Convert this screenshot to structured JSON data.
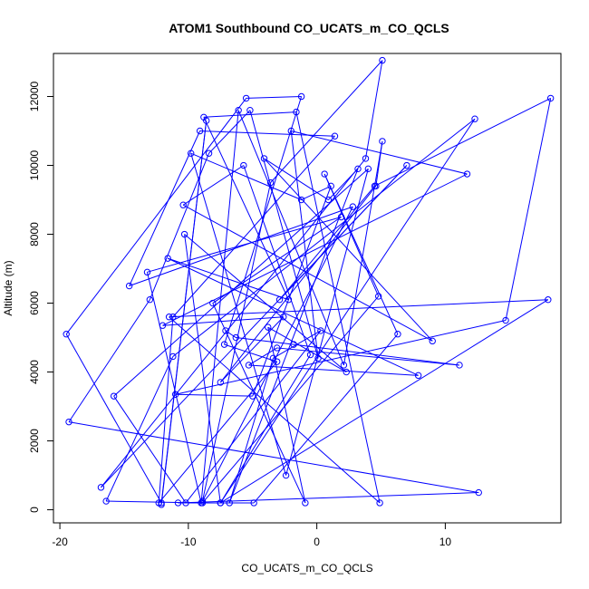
{
  "chart_data": {
    "type": "line",
    "title": "ATOM1 Southbound CO_UCATS_m_CO_QCLS",
    "xlabel": "CO_UCATS_m_CO_QCLS",
    "ylabel": "Altitude (m)",
    "xlim": [
      -20.5,
      19.0
    ],
    "ylim": [
      -380,
      13250
    ],
    "xticks": [
      -20,
      -10,
      0,
      10
    ],
    "yticks": [
      0,
      2000,
      4000,
      6000,
      8000,
      10000,
      12000
    ],
    "markers": "open-circle",
    "color": "#0000ff",
    "x": [
      -12.1,
      -8.6,
      -12.1,
      -19.5,
      -5.5,
      -1.2,
      -7.2,
      -3.1,
      -12.3,
      -11.2,
      1.4,
      -9.1,
      -14.6,
      2.8,
      -8.9,
      -3.6,
      5.1,
      3.8,
      -16.8,
      7.0,
      -2.9,
      4.5,
      18.2,
      14.7,
      -11.0,
      -5.0,
      1.1,
      -1.2,
      -9.8,
      -2.4,
      4.0,
      -15.8,
      -10.2,
      0.3,
      -3.4,
      -6.8,
      3.2,
      0.9,
      -4.1,
      9.0,
      -10.4,
      -5.7,
      -0.5,
      -7.5,
      12.3,
      -11.2,
      -16.4,
      -8.9,
      4.8,
      0.6,
      6.3,
      -4.9,
      -10.8,
      12.6,
      -19.3,
      -13.0,
      -8.4,
      -5.2,
      0.1,
      -2.0,
      11.7,
      -12.0,
      -2.6,
      -7.5,
      4.6,
      5.1,
      2.1,
      -6.1,
      -9.0,
      -13.2,
      1.9,
      -8.1,
      -0.9,
      -3.8,
      2.3,
      -10.3,
      -7.5,
      18.0,
      -11.5,
      4.9,
      -1.6,
      -8.8,
      -2.2,
      -11.6,
      7.9,
      -5.3,
      -3.1,
      11.1,
      -1.8,
      -6.3,
      -7.1
    ],
    "y": [
      150,
      11300,
      200,
      5100,
      11950,
      12000,
      4800,
      4300,
      200,
      5600,
      10850,
      11000,
      6500,
      8800,
      250,
      9500,
      13050,
      10200,
      650,
      10000,
      6100,
      9400,
      11950,
      5500,
      3350,
      3300,
      9400,
      9000,
      10350,
      1000,
      9900,
      3300,
      200,
      5200,
      4400,
      200,
      9900,
      9000,
      10200,
      4900,
      8850,
      10000,
      4500,
      200,
      11350,
      4450,
      250,
      200,
      6200,
      9750,
      5100,
      200,
      200,
      500,
      2550,
      6100,
      10350,
      11600,
      4400,
      11000,
      9750,
      5350,
      5600,
      3700,
      9400,
      10700,
      4200,
      11600,
      200,
      6900,
      8500,
      6000,
      200,
      5300,
      4000,
      8000,
      200,
      6100,
      5600,
      200,
      11550,
      11400,
      6100,
      7300,
      3900,
      4200,
      4700,
      4200,
      4800,
      5000,
      5200
    ]
  }
}
